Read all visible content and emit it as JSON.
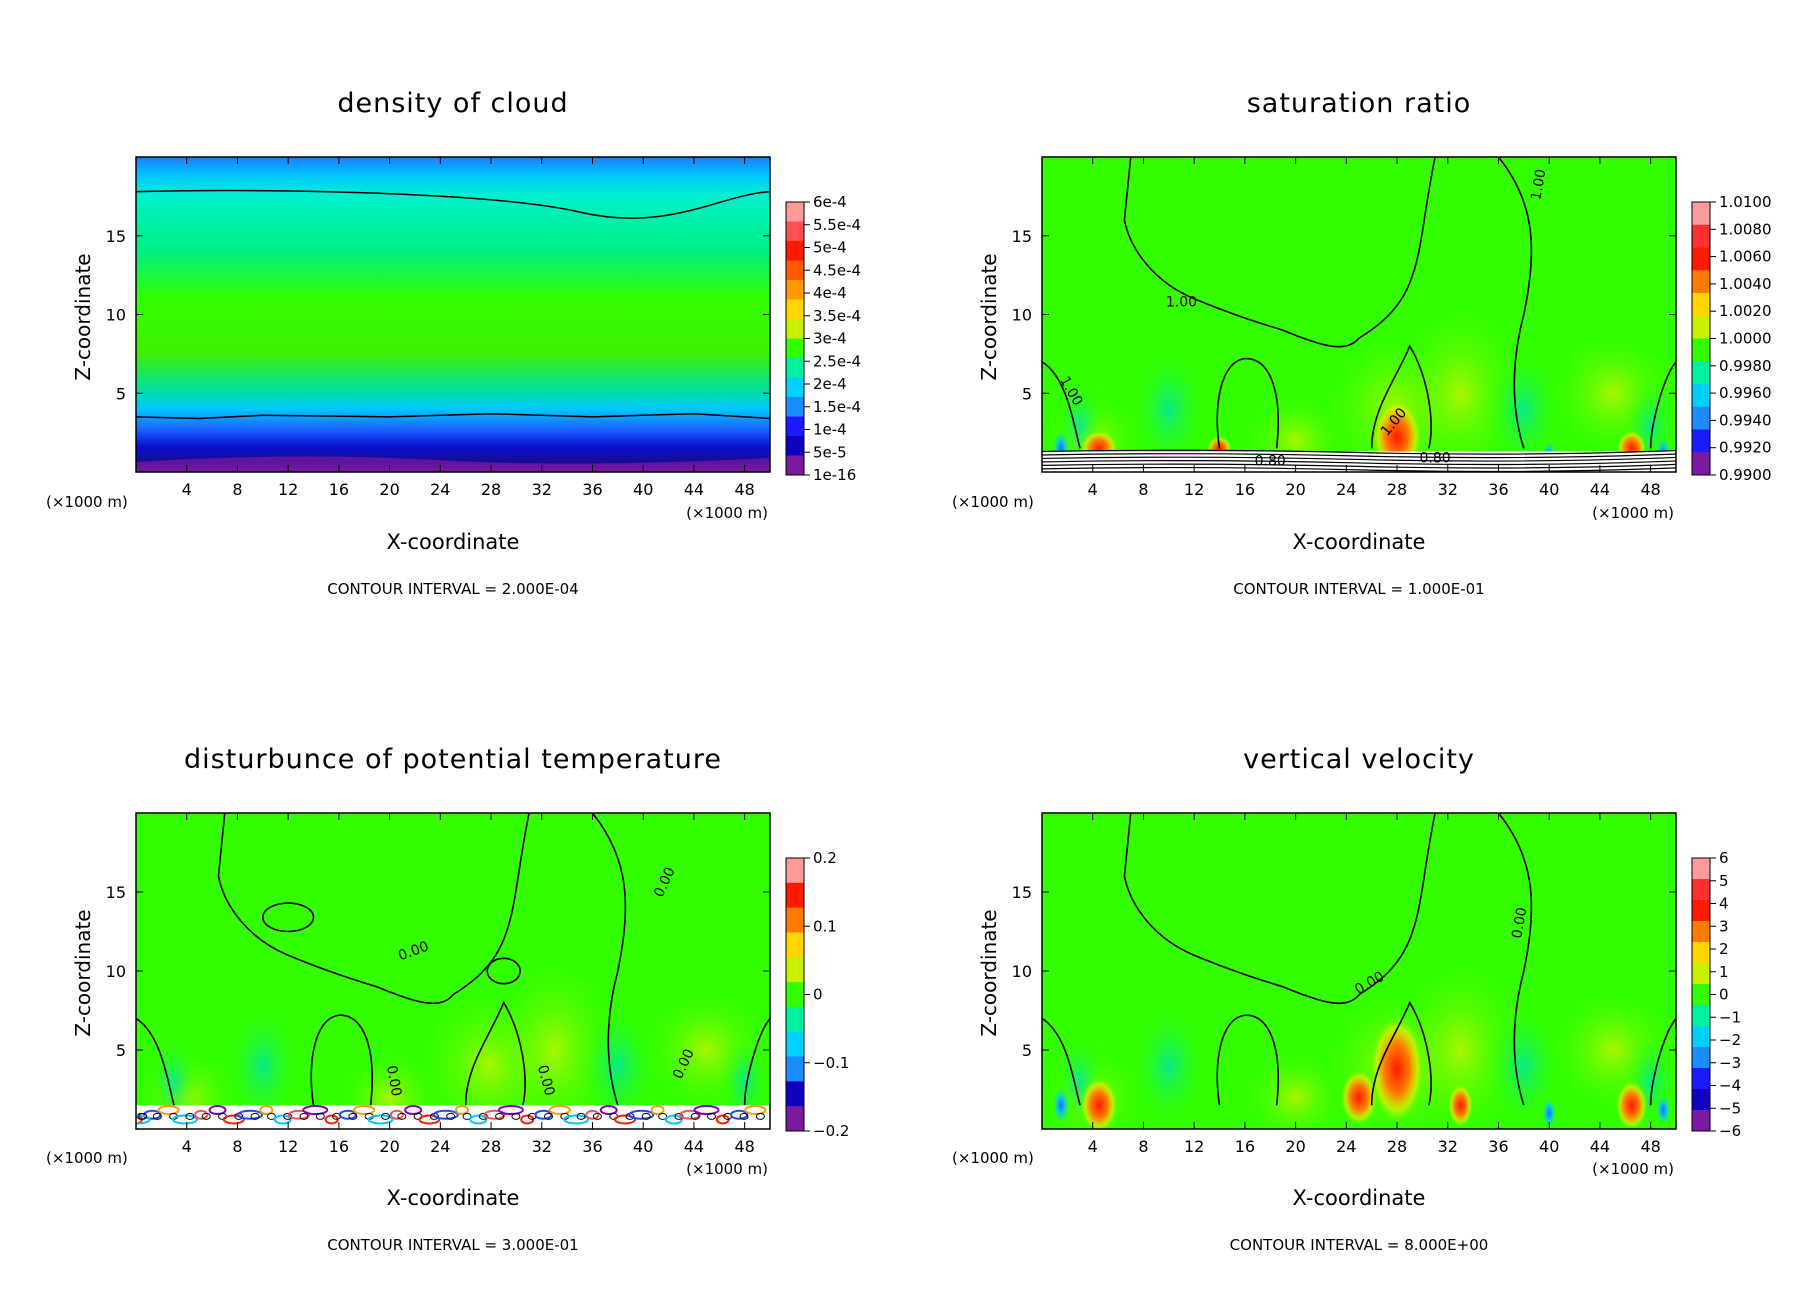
{
  "chart_data": [
    {
      "type": "heatmap",
      "title": "density of cloud",
      "xlabel": "X-coordinate",
      "ylabel": "Z-coordinate",
      "x_unit": "(×1000 m)",
      "xlim": [
        0,
        50
      ],
      "ylim": [
        0,
        20
      ],
      "xticks": [
        4,
        8,
        12,
        16,
        20,
        24,
        28,
        32,
        36,
        40,
        44,
        48
      ],
      "yticks": [
        5,
        10,
        15
      ],
      "colorbar_labels": [
        "6e-4",
        "5.5e-4",
        "5e-4",
        "4.5e-4",
        "4e-4",
        "3.5e-4",
        "3e-4",
        "2.5e-4",
        "2e-4",
        "1.5e-4",
        "1e-4",
        "5e-5",
        "1e-16"
      ],
      "contour_interval": "CONTOUR INTERVAL = 2.000E-04",
      "contour_labels": []
    },
    {
      "type": "heatmap",
      "title": "saturation ratio",
      "xlabel": "X-coordinate",
      "ylabel": "Z-coordinate",
      "x_unit": "(×1000 m)",
      "xlim": [
        0,
        50
      ],
      "ylim": [
        0,
        20
      ],
      "xticks": [
        4,
        8,
        12,
        16,
        20,
        24,
        28,
        32,
        36,
        40,
        44,
        48
      ],
      "yticks": [
        5,
        10,
        15
      ],
      "colorbar_labels": [
        "1.0100",
        "1.0080",
        "1.0060",
        "1.0040",
        "1.0020",
        "1.0000",
        "0.9980",
        "0.9960",
        "0.9940",
        "0.9920",
        "0.9900"
      ],
      "contour_interval": "CONTOUR INTERVAL = 1.000E-01",
      "contour_labels": [
        "1.00",
        "1.00",
        "1.00",
        "1.00",
        "0.80",
        "0.80"
      ]
    },
    {
      "type": "heatmap",
      "title": "disturbunce of potential temperature",
      "xlabel": "X-coordinate",
      "ylabel": "Z-coordinate",
      "x_unit": "(×1000 m)",
      "xlim": [
        0,
        50
      ],
      "ylim": [
        0,
        20
      ],
      "xticks": [
        4,
        8,
        12,
        16,
        20,
        24,
        28,
        32,
        36,
        40,
        44,
        48
      ],
      "yticks": [
        5,
        10,
        15
      ],
      "colorbar_labels": [
        "0.2",
        "0.1",
        "0",
        "−0.1",
        "−0.2"
      ],
      "contour_interval": "CONTOUR INTERVAL = 3.000E-01",
      "contour_labels": [
        "0.00",
        "0.00",
        "0.00",
        "0.00",
        "0.00"
      ]
    },
    {
      "type": "heatmap",
      "title": "vertical velocity",
      "xlabel": "X-coordinate",
      "ylabel": "Z-coordinate",
      "x_unit": "(×1000 m)",
      "xlim": [
        0,
        50
      ],
      "ylim": [
        0,
        20
      ],
      "xticks": [
        4,
        8,
        12,
        16,
        20,
        24,
        28,
        32,
        36,
        40,
        44,
        48
      ],
      "yticks": [
        5,
        10,
        15
      ],
      "colorbar_labels": [
        "6",
        "5",
        "4",
        "3",
        "2",
        "1",
        "0",
        "−1",
        "−2",
        "−3",
        "−4",
        "−5",
        "−6"
      ],
      "contour_interval": "CONTOUR INTERVAL = 8.000E+00",
      "contour_labels": [
        "0.00",
        "0.00"
      ]
    }
  ]
}
